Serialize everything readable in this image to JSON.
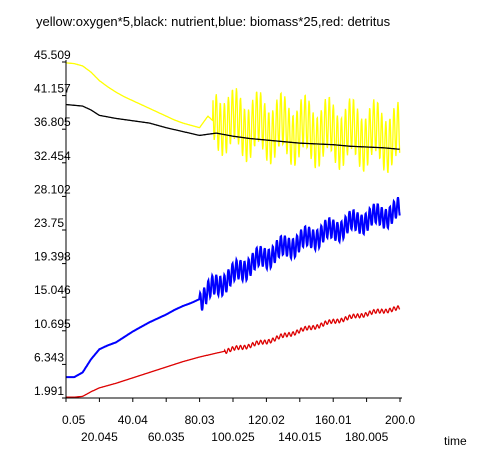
{
  "chart_data": {
    "type": "line",
    "title": "yellow:oxygen*5,black: nutrient,blue: biomass*25,red: detritus",
    "xlabel": "time",
    "ylabel": "",
    "xlim": [
      0.05,
      200.0
    ],
    "ylim": [
      1.991,
      45.509
    ],
    "x_ticks": [
      "0.05",
      "20.045",
      "40.04",
      "60.035",
      "80.03",
      "100.025",
      "120.02",
      "140.015",
      "160.01",
      "180.005",
      "200.0"
    ],
    "y_ticks": [
      "1.991",
      "6.343",
      "10.695",
      "15.046",
      "19.398",
      "23.75",
      "28.102",
      "32.454",
      "36.805",
      "41.157",
      "45.509"
    ],
    "grid": false,
    "legend": "none",
    "series": [
      {
        "name": "oxygen*5",
        "color": "#ffff00",
        "x": [
          0.05,
          5,
          10,
          15,
          20,
          25,
          30,
          35,
          40,
          45,
          50,
          55,
          60,
          65,
          70,
          75,
          80,
          85,
          90,
          95,
          100,
          110,
          120,
          130,
          140,
          150,
          160,
          170,
          180,
          190,
          200
        ],
        "y": [
          45.4,
          45.3,
          45.0,
          44.2,
          43.1,
          42.3,
          41.6,
          41.0,
          40.5,
          40.0,
          39.5,
          39.0,
          38.5,
          38.0,
          37.6,
          37.3,
          37.0,
          38.5,
          37.5,
          38.2,
          37.5,
          37.2,
          37.0,
          36.8,
          36.6,
          36.4,
          36.3,
          36.2,
          36.0,
          35.9,
          35.5
        ],
        "oscillation_start": 88,
        "oscillation_amplitude": 4.0
      },
      {
        "name": "nutrient",
        "color": "#000000",
        "x": [
          0.05,
          10,
          15,
          20,
          30,
          40,
          50,
          60,
          70,
          80,
          90,
          100,
          110,
          120,
          130,
          140,
          150,
          160,
          170,
          180,
          190,
          200
        ],
        "y": [
          40.0,
          39.8,
          39.3,
          38.6,
          38.2,
          37.9,
          37.6,
          37.0,
          36.5,
          36.0,
          36.3,
          35.9,
          35.6,
          35.4,
          35.2,
          35.0,
          34.9,
          34.8,
          34.6,
          34.5,
          34.4,
          34.2
        ]
      },
      {
        "name": "biomass*25",
        "color": "#0000ff",
        "x": [
          0.05,
          5,
          10,
          15,
          20,
          25,
          30,
          35,
          40,
          45,
          50,
          55,
          60,
          65,
          70,
          75,
          80,
          85,
          90,
          95,
          100,
          105,
          110,
          115,
          120,
          125,
          130,
          135,
          140,
          145,
          150,
          155,
          160,
          165,
          170,
          175,
          180,
          185,
          190,
          195,
          200
        ],
        "y": [
          4.7,
          4.7,
          5.3,
          7.0,
          8.3,
          8.8,
          9.2,
          9.9,
          10.6,
          11.2,
          11.8,
          12.3,
          12.8,
          13.4,
          13.9,
          14.3,
          14.8,
          15.6,
          16.5,
          17.2,
          17.8,
          18.6,
          19.3,
          19.8,
          20.3,
          20.9,
          21.3,
          21.8,
          22.2,
          22.6,
          23.0,
          23.4,
          23.7,
          24.1,
          24.5,
          24.8,
          25.1,
          25.4,
          25.6,
          25.9,
          26.3
        ],
        "oscillation_start": 80,
        "oscillation_amplitude": 1.5
      },
      {
        "name": "detritus",
        "color": "#dd0000",
        "x": [
          0.05,
          5,
          10,
          15,
          20,
          30,
          40,
          50,
          60,
          70,
          80,
          90,
          100,
          110,
          120,
          130,
          140,
          150,
          160,
          170,
          180,
          190,
          200
        ],
        "y": [
          2.1,
          2.1,
          2.2,
          2.8,
          3.3,
          3.9,
          4.6,
          5.3,
          6.0,
          6.7,
          7.3,
          7.8,
          8.3,
          8.8,
          9.3,
          10.0,
          10.7,
          11.3,
          11.9,
          12.4,
          12.9,
          13.3,
          13.6
        ],
        "oscillation_start": 95,
        "oscillation_amplitude": 0.3
      }
    ]
  }
}
